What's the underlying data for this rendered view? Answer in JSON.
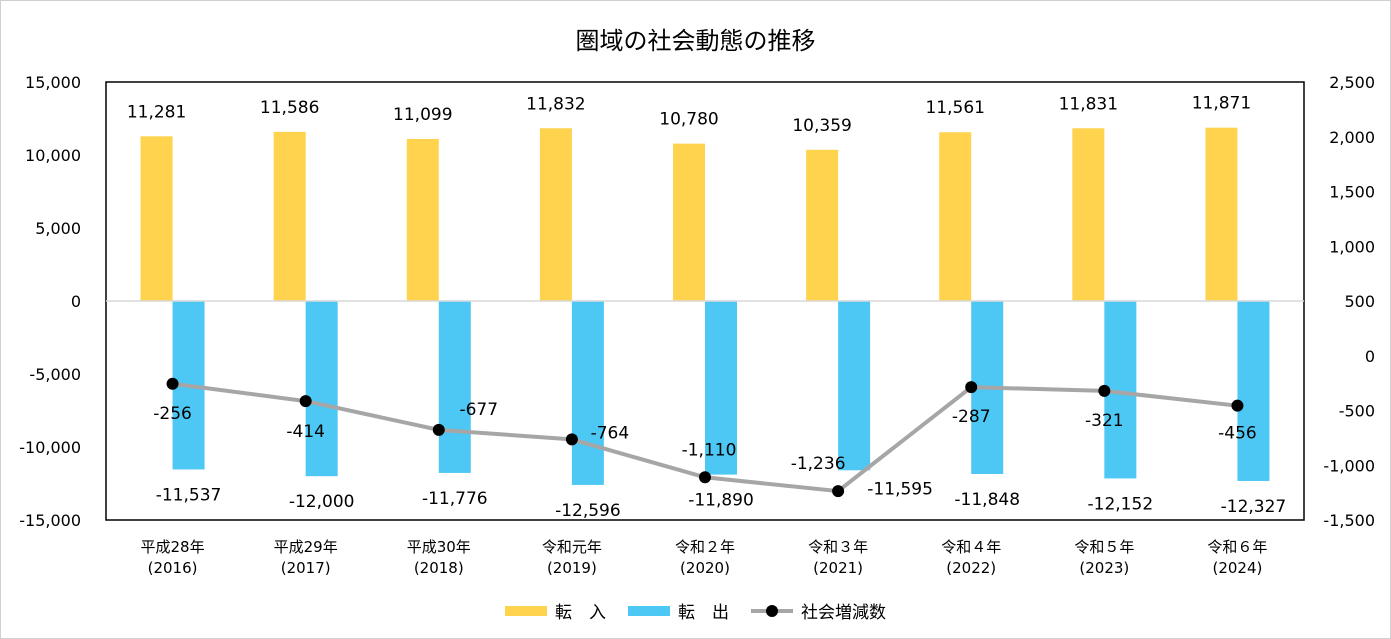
{
  "chart_data": {
    "type": "bar+line",
    "title": "圏域の社会動態の推移",
    "categories": [
      [
        "平成28年",
        "(2016)"
      ],
      [
        "平成29年",
        "(2017)"
      ],
      [
        "平成30年",
        "(2018)"
      ],
      [
        "令和元年",
        "(2019)"
      ],
      [
        "令和２年",
        "(2020)"
      ],
      [
        "令和３年",
        "(2021)"
      ],
      [
        "令和４年",
        "(2022)"
      ],
      [
        "令和５年",
        "(2023)"
      ],
      [
        "令和６年",
        "(2024)"
      ]
    ],
    "series": [
      {
        "name": "転　入",
        "type": "bar",
        "axis": "left",
        "color": "#FFD34D",
        "values": [
          11281,
          11586,
          11099,
          11832,
          10780,
          10359,
          11561,
          11831,
          11871
        ],
        "labels": [
          "11,281",
          "11,586",
          "11,099",
          "11,832",
          "10,780",
          "10,359",
          "11,561",
          "11,831",
          "11,871"
        ]
      },
      {
        "name": "転　出",
        "type": "bar",
        "axis": "left",
        "color": "#4DC8F4",
        "values": [
          -11537,
          -12000,
          -11776,
          -12596,
          -11890,
          -11595,
          -11848,
          -12152,
          -12327
        ],
        "labels": [
          "-11,537",
          "-12,000",
          "-11,776",
          "-12,596",
          "-11,890",
          "-11,595",
          "-11,848",
          "-12,152",
          "-12,327"
        ]
      },
      {
        "name": "社会増減数",
        "type": "line",
        "axis": "right",
        "color": "#A6A6A6",
        "marker_color": "#000000",
        "values": [
          -256,
          -414,
          -677,
          -764,
          -1110,
          -1236,
          -287,
          -321,
          -456
        ],
        "labels": [
          "-256",
          "-414",
          "-677",
          "-764",
          "-1,110",
          "-1,236",
          "-287",
          "-321",
          "-456"
        ]
      }
    ],
    "left_axis": {
      "ylim": [
        -15000,
        15000
      ],
      "ticks": [
        "15,000",
        "10,000",
        "5,000",
        "0",
        "-5,000",
        "-10,000",
        "-15,000"
      ]
    },
    "right_axis": {
      "ylim": [
        -1500,
        2500
      ],
      "ticks": [
        "2,500",
        "2,000",
        "1,500",
        "1,000",
        "500",
        "0",
        "-500",
        "-1,000",
        "-1,500"
      ]
    },
    "grid": false,
    "legend_position": "bottom"
  }
}
